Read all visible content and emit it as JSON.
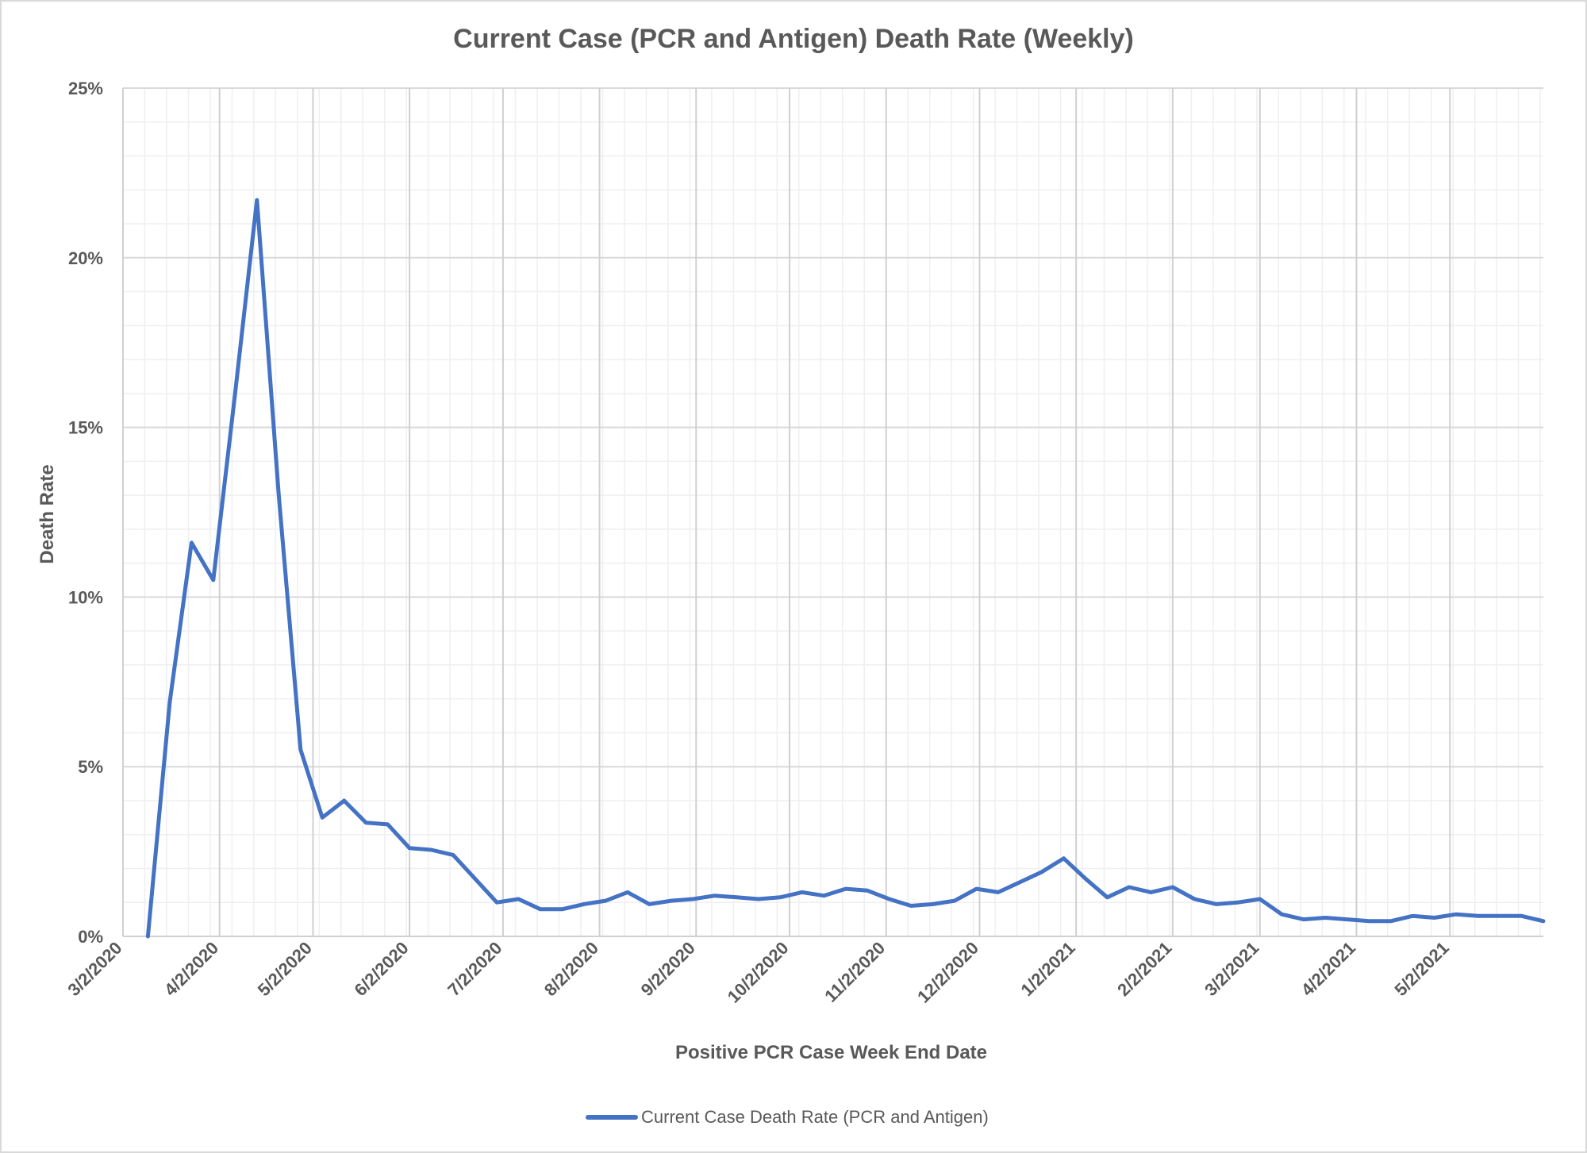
{
  "chart_data": {
    "type": "line",
    "title": "Current Case (PCR and Antigen) Death Rate (Weekly)",
    "xlabel": "Positive PCR Case Week End Date",
    "ylabel": "Death Rate",
    "ylim": [
      0,
      25
    ],
    "xlim": [
      "2020-03-02",
      "2021-06-01"
    ],
    "y_ticks": [
      "0%",
      "5%",
      "10%",
      "15%",
      "20%",
      "25%"
    ],
    "x_ticks": [
      "3/2/2020",
      "4/2/2020",
      "5/2/2020",
      "6/2/2020",
      "7/2/2020",
      "8/2/2020",
      "9/2/2020",
      "10/2/2020",
      "11/2/2020",
      "12/2/2020",
      "1/2/2021",
      "2/2/2021",
      "3/2/2021",
      "4/2/2021",
      "5/2/2021"
    ],
    "grid": true,
    "legend_position": "bottom",
    "series": [
      {
        "name": "Current Case Death Rate (PCR and Antigen)",
        "color": "#4472c4",
        "x": [
          "2020-03-10",
          "2020-03-17",
          "2020-03-24",
          "2020-03-31",
          "2020-04-07",
          "2020-04-14",
          "2020-04-21",
          "2020-04-28",
          "2020-05-05",
          "2020-05-12",
          "2020-05-19",
          "2020-05-26",
          "2020-06-02",
          "2020-06-09",
          "2020-06-16",
          "2020-06-23",
          "2020-06-30",
          "2020-07-07",
          "2020-07-14",
          "2020-07-21",
          "2020-07-28",
          "2020-08-04",
          "2020-08-11",
          "2020-08-18",
          "2020-08-25",
          "2020-09-01",
          "2020-09-08",
          "2020-09-15",
          "2020-09-22",
          "2020-09-29",
          "2020-10-06",
          "2020-10-13",
          "2020-10-20",
          "2020-10-27",
          "2020-11-03",
          "2020-11-10",
          "2020-11-17",
          "2020-11-24",
          "2020-12-01",
          "2020-12-08",
          "2020-12-15",
          "2020-12-22",
          "2020-12-29",
          "2021-01-05",
          "2021-01-12",
          "2021-01-19",
          "2021-01-26",
          "2021-02-02",
          "2021-02-09",
          "2021-02-16",
          "2021-02-23",
          "2021-03-02",
          "2021-03-09",
          "2021-03-16",
          "2021-03-23",
          "2021-03-30",
          "2021-04-06",
          "2021-04-13",
          "2021-04-20",
          "2021-04-27",
          "2021-05-04",
          "2021-05-11",
          "2021-05-18",
          "2021-05-25",
          "2021-06-01"
        ],
        "values": [
          0,
          6.9,
          11.6,
          10.5,
          16.0,
          21.7,
          13.0,
          5.5,
          3.5,
          4.0,
          3.35,
          3.3,
          2.6,
          2.55,
          2.4,
          1.7,
          1.0,
          1.1,
          0.8,
          0.8,
          0.95,
          1.05,
          1.3,
          0.95,
          1.05,
          1.1,
          1.2,
          1.15,
          1.1,
          1.15,
          1.3,
          1.2,
          1.4,
          1.35,
          1.1,
          0.9,
          0.95,
          1.05,
          1.4,
          1.3,
          1.6,
          1.9,
          2.3,
          1.7,
          1.15,
          1.45,
          1.3,
          1.45,
          1.1,
          0.95,
          1.0,
          1.1,
          0.65,
          0.5,
          0.55,
          0.5,
          0.45,
          0.45,
          0.6,
          0.55,
          0.65,
          0.6,
          0.6,
          0.6,
          0.45
        ]
      }
    ]
  }
}
